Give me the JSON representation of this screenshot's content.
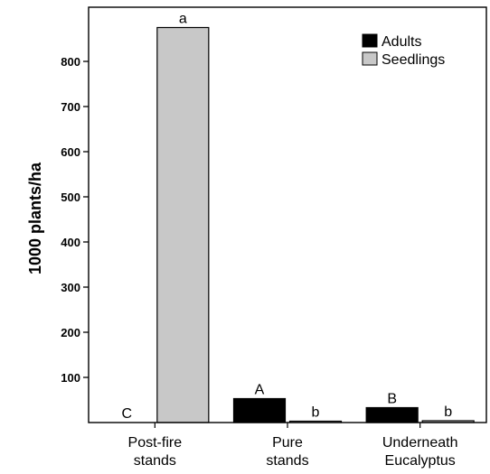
{
  "chart_data": {
    "type": "bar",
    "ylabel": "1000 plants/ha",
    "ylim": [
      0,
      920
    ],
    "yticks": [
      100,
      200,
      300,
      400,
      500,
      600,
      700,
      800
    ],
    "categories": [
      [
        "Post-fire",
        "stands"
      ],
      [
        "Pure",
        "stands"
      ],
      [
        "Underneath",
        "Eucalyptus"
      ]
    ],
    "series": [
      {
        "name": "Adults",
        "color": "#000000",
        "values": [
          0,
          53,
          33
        ],
        "labels": [
          "C",
          "A",
          "B"
        ]
      },
      {
        "name": "Seedlings",
        "color": "#c8c8c8",
        "values": [
          875,
          3,
          4
        ],
        "labels": [
          "a",
          "b",
          "b"
        ]
      }
    ],
    "legend_position": "top-right",
    "grid": false
  }
}
